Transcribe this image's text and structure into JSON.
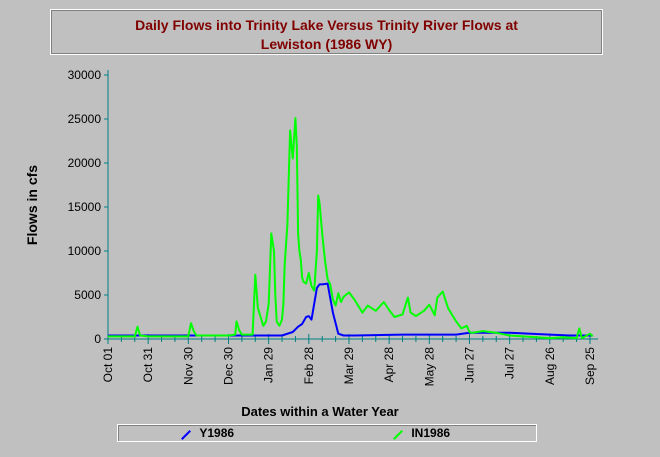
{
  "chart_data": {
    "type": "line",
    "title_line1": "Daily Flows into Trinity Lake Versus Trinity River Flows at",
    "title_line2": "Lewiston (1986 WY)",
    "xlabel": "Dates within a Water Year",
    "ylabel": "Flows in cfs",
    "ylim": [
      0,
      30000
    ],
    "yticks": [
      0,
      5000,
      10000,
      15000,
      20000,
      25000,
      30000
    ],
    "xlim": [
      0,
      366
    ],
    "xtick_days": [
      0,
      30,
      60,
      90,
      120,
      150,
      180,
      210,
      240,
      270,
      300,
      330,
      360
    ],
    "xtick_labels": [
      "Oct 01",
      "Oct 31",
      "Nov 30",
      "Dec 30",
      "Jan 29",
      "Feb 28",
      "Mar 29",
      "Apr 28",
      "May 28",
      "Jun 27",
      "Jul 27",
      "Aug 26",
      "Sep 25"
    ],
    "grid": false,
    "legend_placement": "bottom",
    "series": [
      {
        "name": "Y1986",
        "color": "#0000ff",
        "x": [
          0,
          130,
          138,
          142,
          145,
          148,
          150,
          152,
          156,
          158,
          160,
          164,
          168,
          172,
          176,
          180,
          184,
          220,
          260,
          270,
          300,
          330,
          345,
          362
        ],
        "y": [
          400,
          400,
          800,
          1400,
          1700,
          2500,
          2600,
          2200,
          5800,
          6200,
          6200,
          6300,
          3000,
          600,
          400,
          400,
          400,
          500,
          500,
          700,
          700,
          500,
          400,
          400
        ]
      },
      {
        "name": "IN1986",
        "color": "#00ff00",
        "x": [
          0,
          20,
          22,
          24,
          30,
          60,
          62,
          64,
          66,
          90,
          95,
          96,
          98,
          100,
          108,
          110,
          112,
          114,
          116,
          118,
          120,
          121,
          122,
          124,
          125,
          126,
          128,
          130,
          131,
          132,
          134,
          136,
          138,
          140,
          141,
          142,
          143,
          144,
          145,
          146,
          148,
          150,
          152,
          154,
          156,
          157,
          158,
          160,
          162,
          164,
          166,
          168,
          170,
          172,
          174,
          176,
          180,
          184,
          188,
          190,
          194,
          200,
          206,
          210,
          214,
          220,
          224,
          226,
          230,
          236,
          240,
          244,
          246,
          250,
          254,
          260,
          264,
          268,
          270,
          272,
          280,
          290,
          300,
          320,
          330,
          340,
          350,
          352,
          354,
          360,
          362
        ],
        "y": [
          300,
          300,
          1400,
          400,
          300,
          300,
          1800,
          900,
          400,
          400,
          500,
          2000,
          1000,
          500,
          500,
          7300,
          3500,
          2500,
          1500,
          2000,
          4000,
          8000,
          12000,
          10000,
          5000,
          2000,
          1500,
          2200,
          4000,
          8500,
          13000,
          23700,
          20500,
          25100,
          22000,
          12000,
          10000,
          9000,
          7000,
          6500,
          6300,
          7500,
          6000,
          5500,
          10000,
          16300,
          15500,
          12000,
          9000,
          6800,
          6200,
          4500,
          3800,
          5200,
          4200,
          4800,
          5300,
          4500,
          3500,
          3000,
          3800,
          3200,
          4200,
          3300,
          2500,
          2800,
          4700,
          3000,
          2600,
          3200,
          3900,
          2700,
          4700,
          5400,
          3500,
          2000,
          1200,
          1500,
          800,
          700,
          900,
          700,
          400,
          200,
          100,
          200,
          100,
          1200,
          100,
          600,
          300
        ]
      }
    ]
  }
}
